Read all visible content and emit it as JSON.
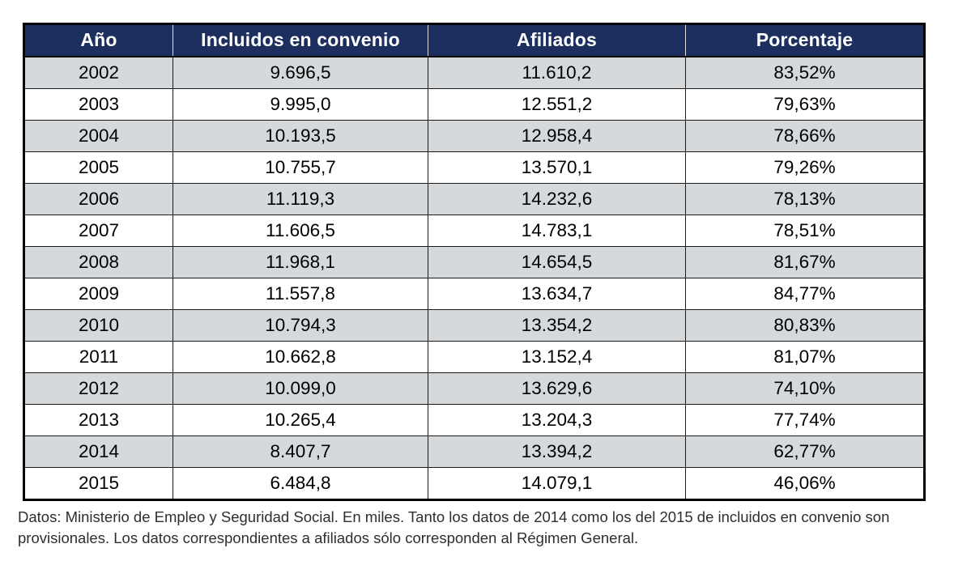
{
  "chart_data": {
    "type": "table",
    "columns": [
      "Año",
      "Incluidos en convenio",
      "Afiliados",
      "Porcentaje"
    ],
    "rows": [
      [
        "2002",
        "9.696,5",
        "11.610,2",
        "83,52%"
      ],
      [
        "2003",
        "9.995,0",
        "12.551,2",
        "79,63%"
      ],
      [
        "2004",
        "10.193,5",
        "12.958,4",
        "78,66%"
      ],
      [
        "2005",
        "10.755,7",
        "13.570,1",
        "79,26%"
      ],
      [
        "2006",
        "11.119,3",
        "14.232,6",
        "78,13%"
      ],
      [
        "2007",
        "11.606,5",
        "14.783,1",
        "78,51%"
      ],
      [
        "2008",
        "11.968,1",
        "14.654,5",
        "81,67%"
      ],
      [
        "2009",
        "11.557,8",
        "13.634,7",
        "84,77%"
      ],
      [
        "2010",
        "10.794,3",
        "13.354,2",
        "80,83%"
      ],
      [
        "2011",
        "10.662,8",
        "13.152,4",
        "81,07%"
      ],
      [
        "2012",
        "10.099,0",
        "13.629,6",
        "74,10%"
      ],
      [
        "2013",
        "10.265,4",
        "13.204,3",
        "77,74%"
      ],
      [
        "2014",
        "8.407,7",
        "13.394,2",
        "62,77%"
      ],
      [
        "2015",
        "6.484,8",
        "14.079,1",
        "46,06%"
      ]
    ]
  },
  "footnote": {
    "text": "Datos: Ministerio de Empleo y Seguridad Social. En miles. Tanto los datos de 2014 como los del 2015 de incluidos en convenio son provisionales. Los datos correspondientes a afiliados sólo corresponden al Régimen General."
  },
  "colors": {
    "header_bg": "#1c2f5e",
    "header_text": "#ffffff",
    "row_stripe": "#d6d9dc",
    "row_plain": "#ffffff",
    "border": "#1a1a1a"
  }
}
